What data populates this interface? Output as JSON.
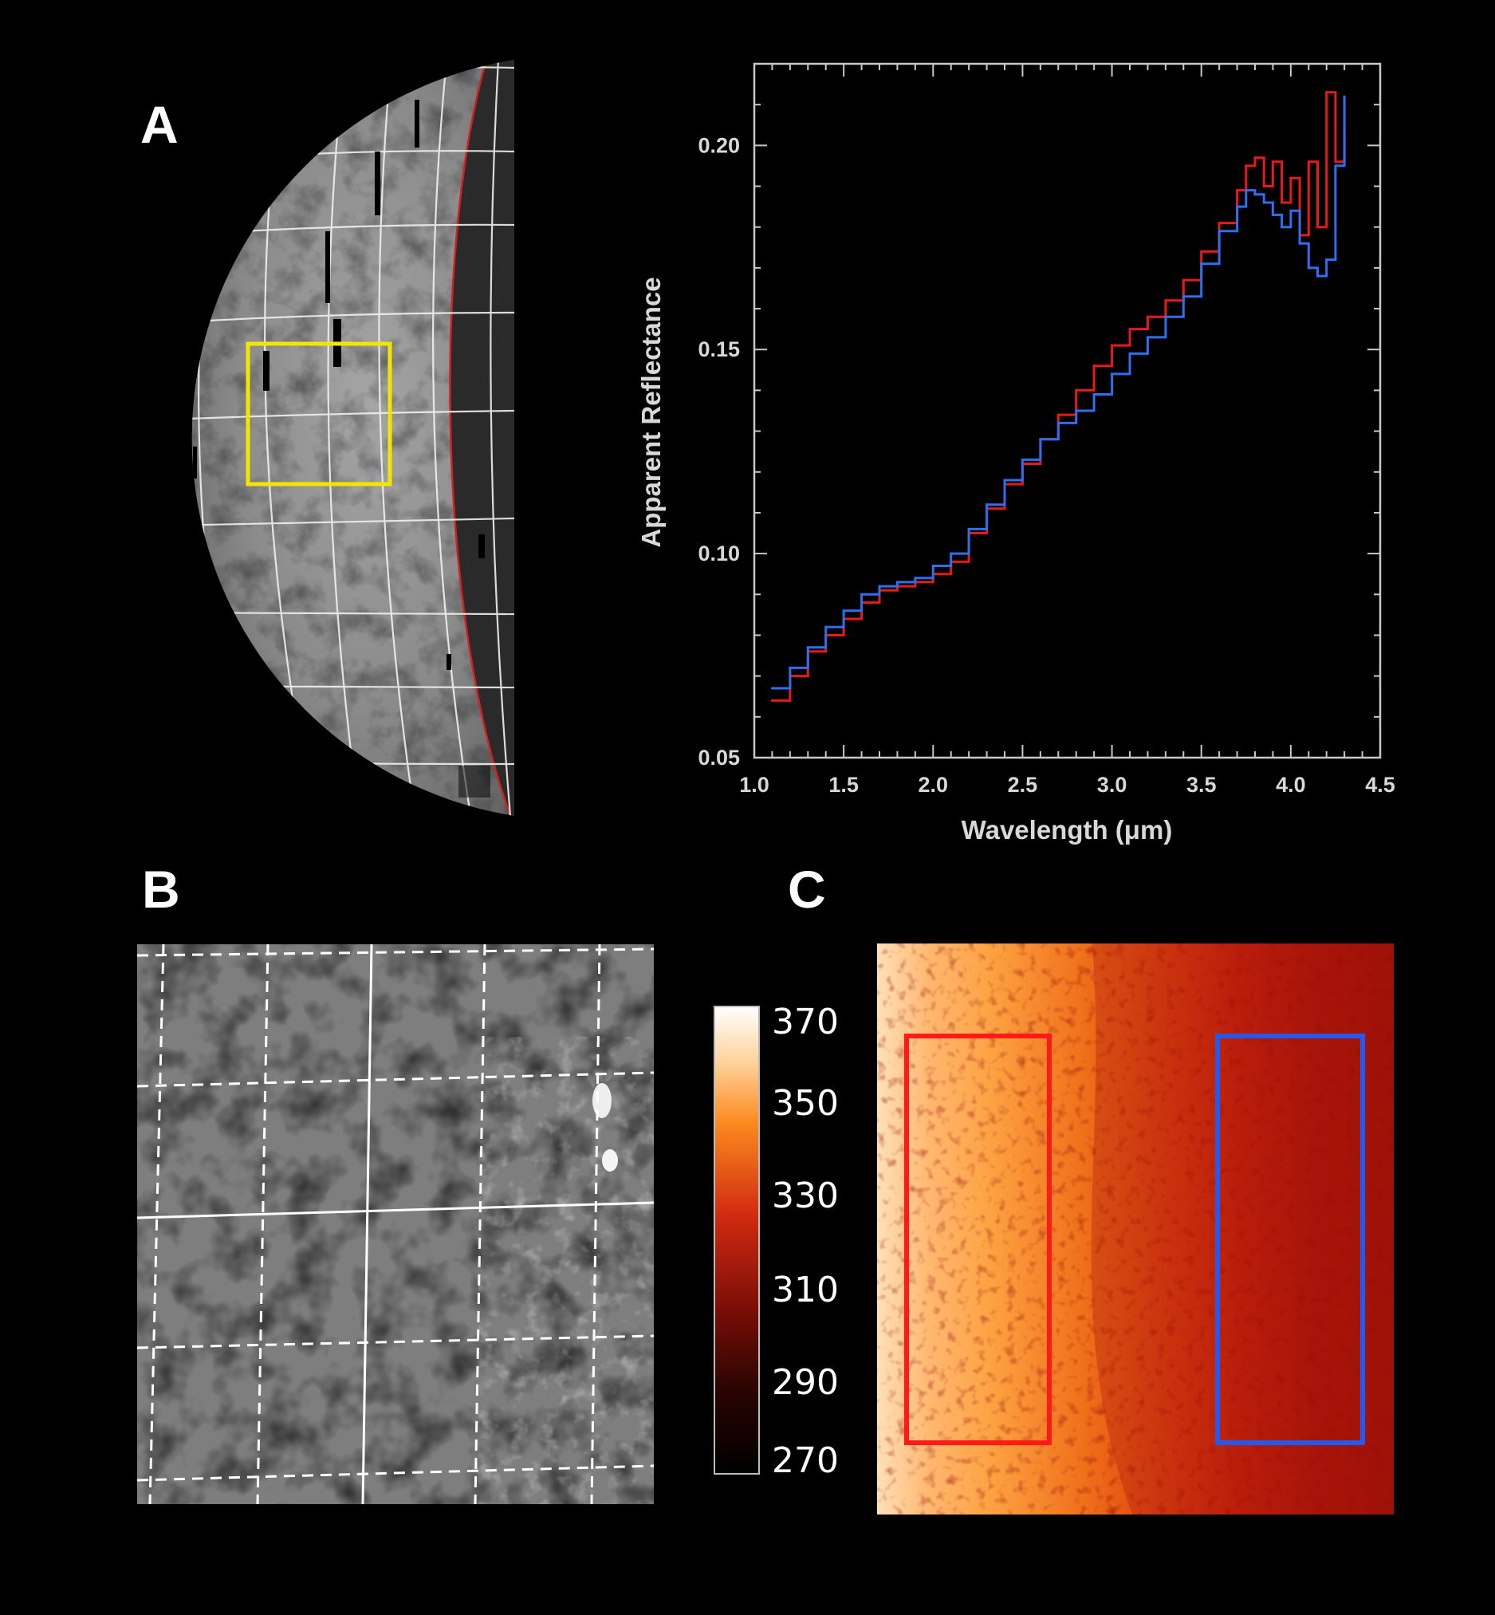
{
  "panels": {
    "a_label": "A",
    "b_label": "B",
    "c_label": "C"
  },
  "chart_data": {
    "type": "line",
    "title": "",
    "xlabel": "Wavelength (μm)",
    "ylabel": "Apparent Reflectance",
    "xlim": [
      1.0,
      4.5
    ],
    "ylim": [
      0.05,
      0.22
    ],
    "xticks": [
      "1.0",
      "1.5",
      "2.0",
      "2.5",
      "3.0",
      "3.5",
      "4.0",
      "4.5"
    ],
    "yticks": [
      "0.05",
      "0.10",
      "0.15",
      "0.20"
    ],
    "grid": false,
    "series": [
      {
        "color": "#e8191a",
        "x": [
          1.1,
          1.2,
          1.3,
          1.4,
          1.5,
          1.6,
          1.7,
          1.8,
          1.9,
          2.0,
          2.1,
          2.2,
          2.3,
          2.4,
          2.5,
          2.6,
          2.7,
          2.8,
          2.9,
          3.0,
          3.1,
          3.2,
          3.3,
          3.4,
          3.5,
          3.6,
          3.7,
          3.75,
          3.8,
          3.85,
          3.9,
          3.95,
          4.0,
          4.05,
          4.1,
          4.15,
          4.2,
          4.25,
          4.3
        ],
        "y": [
          0.064,
          0.07,
          0.076,
          0.08,
          0.084,
          0.088,
          0.091,
          0.092,
          0.093,
          0.095,
          0.098,
          0.105,
          0.111,
          0.117,
          0.122,
          0.128,
          0.134,
          0.14,
          0.146,
          0.151,
          0.155,
          0.158,
          0.162,
          0.167,
          0.174,
          0.181,
          0.189,
          0.195,
          0.197,
          0.19,
          0.196,
          0.186,
          0.192,
          0.178,
          0.196,
          0.18,
          0.213,
          0.196,
          0.203
        ]
      },
      {
        "color": "#2f6ef0",
        "x": [
          1.1,
          1.2,
          1.3,
          1.4,
          1.5,
          1.6,
          1.7,
          1.8,
          1.9,
          2.0,
          2.1,
          2.2,
          2.3,
          2.4,
          2.5,
          2.6,
          2.7,
          2.8,
          2.9,
          3.0,
          3.1,
          3.2,
          3.3,
          3.4,
          3.5,
          3.6,
          3.7,
          3.75,
          3.8,
          3.85,
          3.9,
          3.95,
          4.0,
          4.05,
          4.1,
          4.15,
          4.2,
          4.25,
          4.3
        ],
        "y": [
          0.067,
          0.072,
          0.077,
          0.082,
          0.086,
          0.09,
          0.092,
          0.093,
          0.094,
          0.097,
          0.1,
          0.106,
          0.112,
          0.118,
          0.123,
          0.128,
          0.132,
          0.135,
          0.139,
          0.144,
          0.149,
          0.153,
          0.158,
          0.163,
          0.171,
          0.179,
          0.185,
          0.189,
          0.188,
          0.186,
          0.183,
          0.18,
          0.184,
          0.176,
          0.17,
          0.168,
          0.172,
          0.195,
          0.212
        ]
      }
    ]
  },
  "colorbar": {
    "labels": [
      "370",
      "350",
      "330",
      "310",
      "290",
      "270"
    ]
  },
  "colors": {
    "selection_box": "#f2e600",
    "red_region": "#ff1a1a",
    "blue_region": "#2459f0"
  }
}
